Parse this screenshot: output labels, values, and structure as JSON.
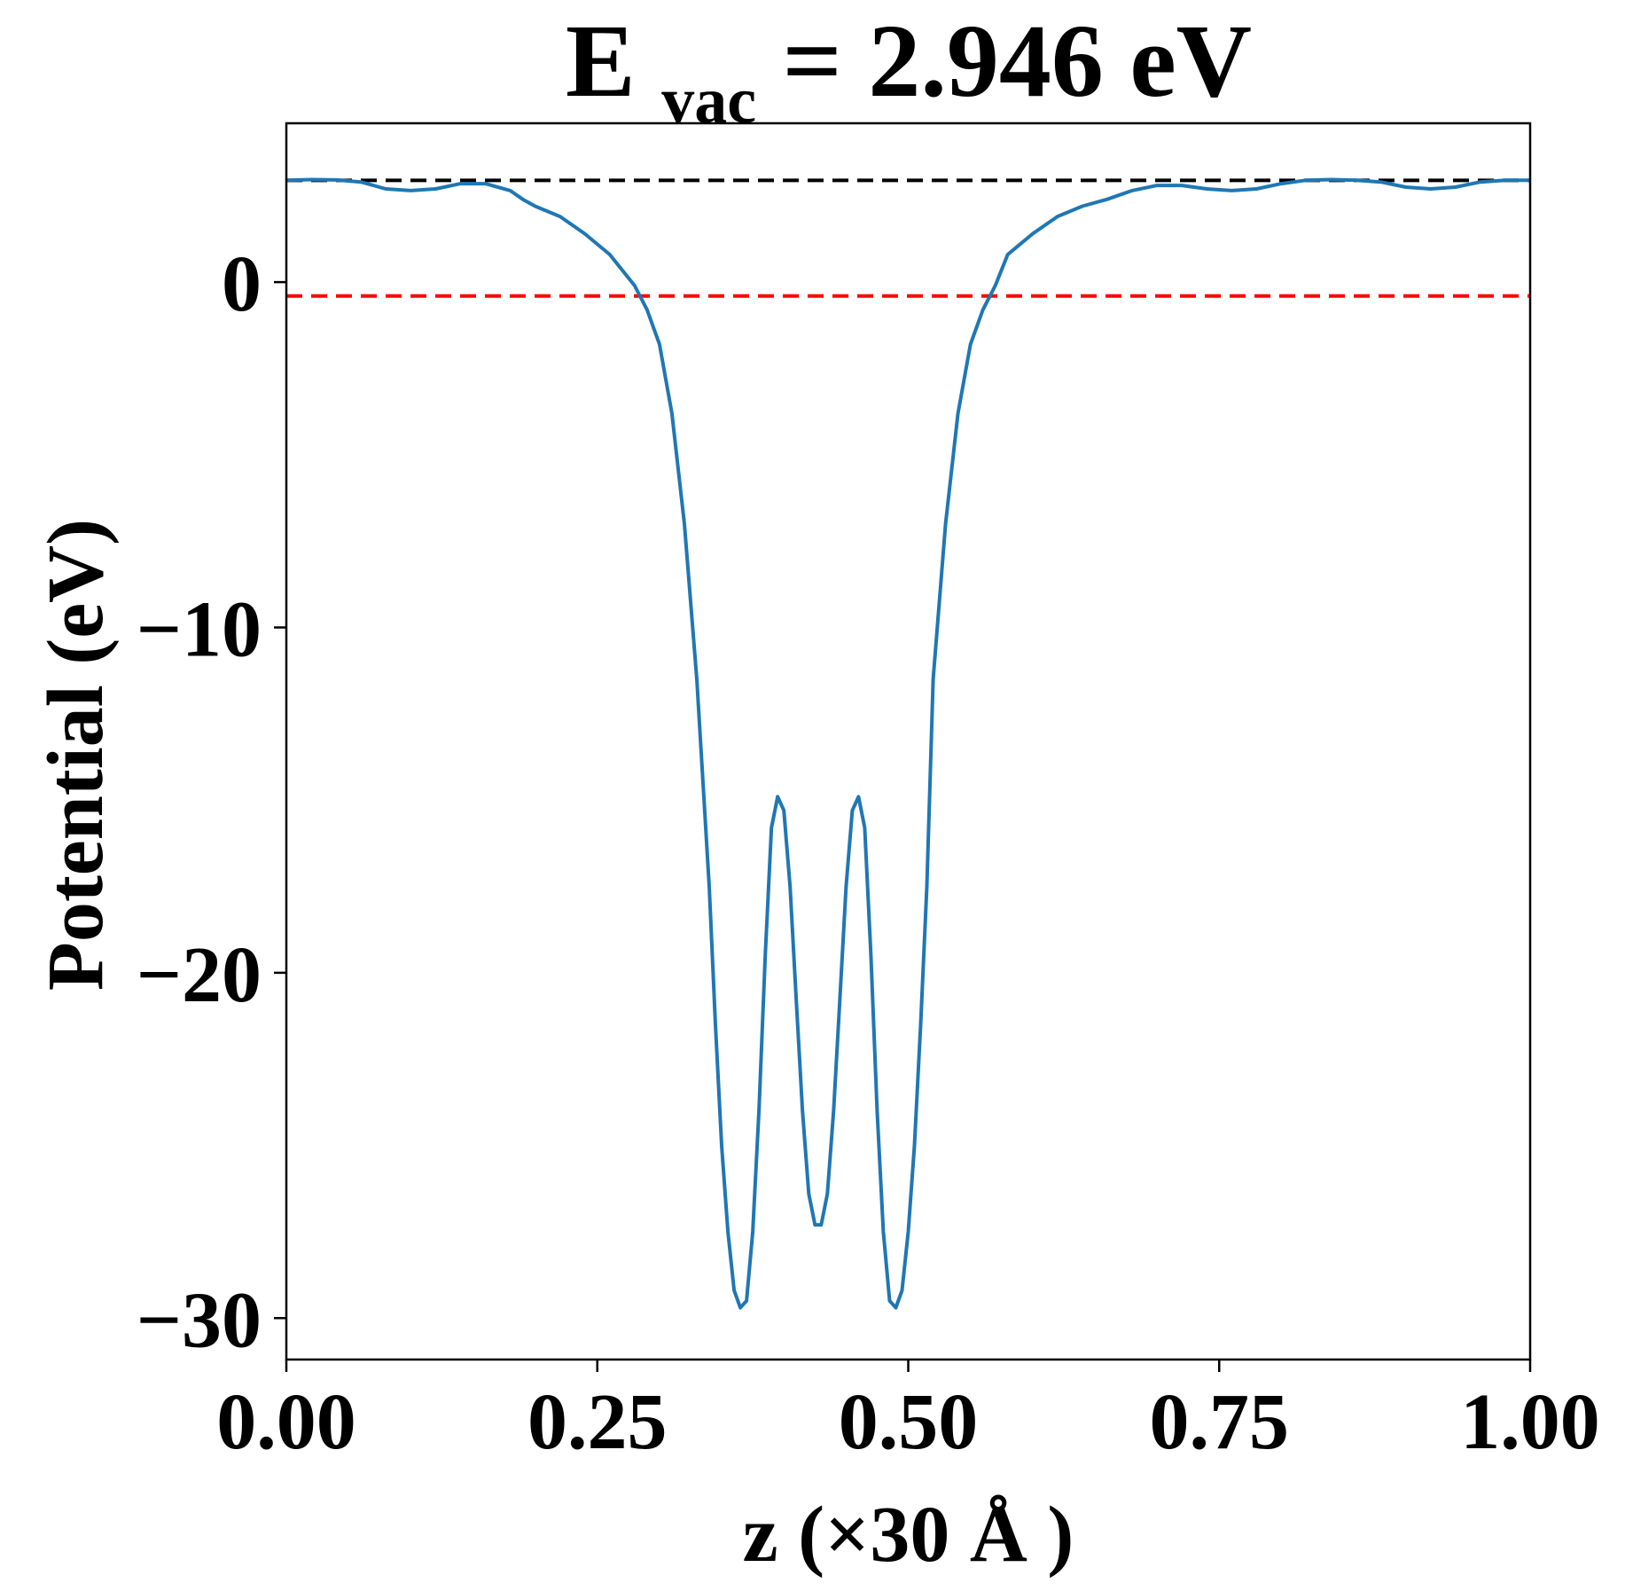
{
  "chart_data": {
    "type": "line",
    "title": {
      "main": "E",
      "subscript": "vac",
      "rest": " = 2.946 eV"
    },
    "xlabel": "z (×30 Å )",
    "ylabel": "Potential (eV)",
    "xlim": [
      0.0,
      1.0
    ],
    "ylim": [
      -31.2,
      4.6
    ],
    "xticks": [
      {
        "value": 0.0,
        "label": "0.00"
      },
      {
        "value": 0.25,
        "label": "0.25"
      },
      {
        "value": 0.5,
        "label": "0.50"
      },
      {
        "value": 0.75,
        "label": "0.75"
      },
      {
        "value": 1.0,
        "label": "1.00"
      }
    ],
    "yticks": [
      {
        "value": 0,
        "label": "0"
      },
      {
        "value": -10,
        "label": "−10"
      },
      {
        "value": -20,
        "label": "−20"
      },
      {
        "value": -30,
        "label": "−30"
      }
    ],
    "grid": false,
    "reference_lines": [
      {
        "y": 2.946,
        "color": "#000000",
        "style": "dashed"
      },
      {
        "y": -0.4,
        "color": "#ff0000",
        "style": "dashed"
      }
    ],
    "series": [
      {
        "color": "#1f77b4",
        "x": [
          0.0,
          0.02,
          0.04,
          0.06,
          0.08,
          0.1,
          0.12,
          0.14,
          0.16,
          0.18,
          0.19,
          0.2,
          0.22,
          0.24,
          0.26,
          0.28,
          0.29,
          0.3,
          0.31,
          0.32,
          0.33,
          0.34,
          0.345,
          0.35,
          0.355,
          0.36,
          0.365,
          0.37,
          0.375,
          0.38,
          0.385,
          0.39,
          0.395,
          0.4,
          0.405,
          0.41,
          0.415,
          0.42,
          0.425,
          0.43,
          0.435,
          0.44,
          0.445,
          0.45,
          0.455,
          0.46,
          0.465,
          0.47,
          0.475,
          0.48,
          0.485,
          0.49,
          0.495,
          0.5,
          0.505,
          0.51,
          0.515,
          0.52,
          0.53,
          0.54,
          0.55,
          0.56,
          0.57,
          0.58,
          0.6,
          0.62,
          0.64,
          0.66,
          0.68,
          0.7,
          0.72,
          0.74,
          0.76,
          0.78,
          0.8,
          0.82,
          0.84,
          0.86,
          0.88,
          0.9,
          0.92,
          0.94,
          0.96,
          0.98,
          1.0
        ],
        "y": [
          2.95,
          2.97,
          2.96,
          2.9,
          2.7,
          2.65,
          2.7,
          2.85,
          2.85,
          2.65,
          2.4,
          2.2,
          1.9,
          1.4,
          0.8,
          -0.1,
          -0.8,
          -1.8,
          -3.8,
          -7.0,
          -11.5,
          -17.5,
          -21.5,
          -25.0,
          -27.5,
          -29.2,
          -29.7,
          -29.5,
          -27.5,
          -24.0,
          -19.5,
          -15.8,
          -14.9,
          -15.3,
          -17.5,
          -20.8,
          -24.0,
          -26.4,
          -27.3,
          -27.3,
          -26.4,
          -24.0,
          -20.8,
          -17.5,
          -15.3,
          -14.9,
          -15.8,
          -19.5,
          -24.0,
          -27.5,
          -29.5,
          -29.7,
          -29.2,
          -27.5,
          -25.0,
          -21.5,
          -17.5,
          -11.5,
          -7.0,
          -3.8,
          -1.8,
          -0.8,
          -0.1,
          0.8,
          1.4,
          1.9,
          2.2,
          2.4,
          2.65,
          2.8,
          2.8,
          2.7,
          2.65,
          2.7,
          2.85,
          2.95,
          2.97,
          2.95,
          2.9,
          2.75,
          2.7,
          2.75,
          2.9,
          2.95,
          2.95
        ]
      }
    ]
  }
}
